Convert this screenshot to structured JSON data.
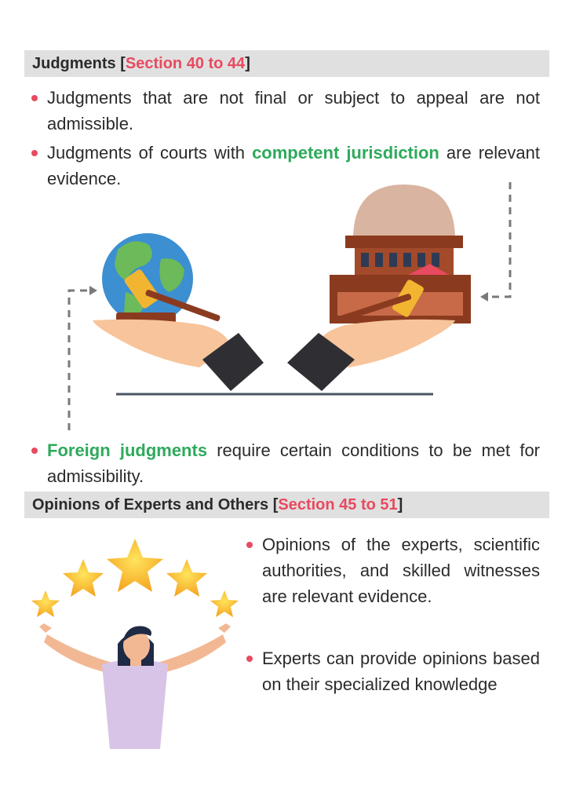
{
  "colors": {
    "accent_red": "#e84a5f",
    "accent_green": "#2eaa5c",
    "bar_grey": "#e0e0e0"
  },
  "judgments": {
    "title": "Judgments [",
    "section": "Section 40 to 44",
    "close": "]",
    "bullet1": "Judgments that are not final or subject to appeal are not admissible.",
    "bullet2_pre": "Judgments of courts with ",
    "bullet2_highlight": "competent jurisdiction",
    "bullet2_post": " are relevant evidence.",
    "bullet3_highlight": "Foreign judgments",
    "bullet3_post": " require certain conditions to be met for admissibility."
  },
  "opinions": {
    "title": "Opinions of Experts and Others [",
    "section": "Section 45 to 51",
    "close": "]",
    "bullet1": "Opinions of the experts, scientific authorities, and skilled witnesses are relevant evidence.",
    "bullet2": "Experts can provide opinions based on their specialized knowledge"
  },
  "icons": [
    "globe-icon",
    "gavel-icon",
    "court-building-icon",
    "hand-icon",
    "star-icon",
    "person-icon",
    "dashed-arrow-icon"
  ]
}
